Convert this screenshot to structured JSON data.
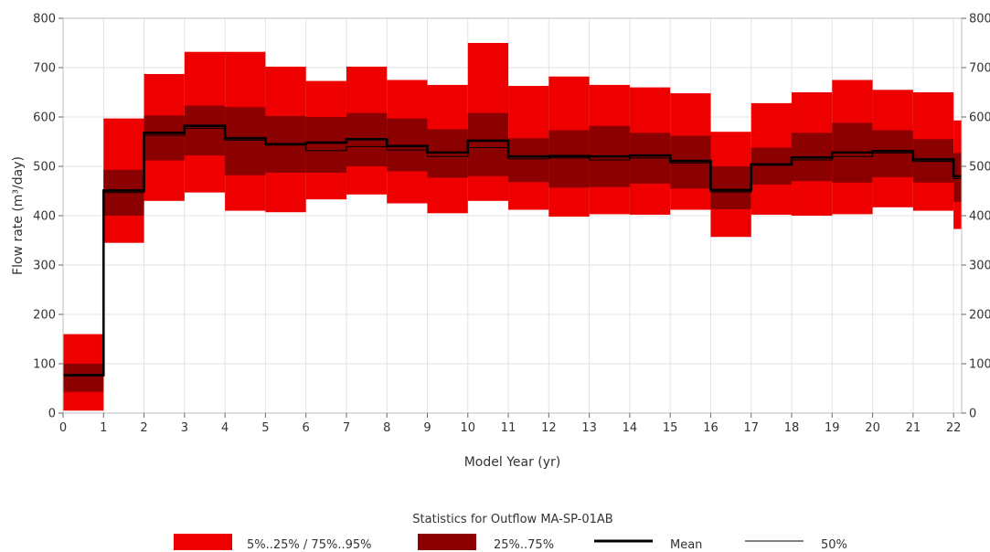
{
  "chart_data": {
    "type": "area",
    "title": "",
    "xlabel": "Model Year (yr)",
    "ylabel": "Flow rate (m³/day)",
    "xlim": [
      0,
      22.2
    ],
    "ylim": [
      0,
      800
    ],
    "x_ticks": [
      0,
      1,
      2,
      3,
      4,
      5,
      6,
      7,
      8,
      9,
      10,
      11,
      12,
      13,
      14,
      15,
      16,
      17,
      18,
      19,
      20,
      21,
      22
    ],
    "y_ticks": [
      0,
      100,
      200,
      300,
      400,
      500,
      600,
      700,
      800
    ],
    "grid": true,
    "right_axis": true,
    "legend": {
      "title": "Statistics for Outflow MA-SP-01AB",
      "placement": "bottom",
      "entries": [
        {
          "label": "5%..25% / 75%..95%",
          "kind": "band-outer"
        },
        {
          "label": "25%..75%",
          "kind": "band-inner"
        },
        {
          "label": "Mean",
          "kind": "line-thick"
        },
        {
          "label": "50%",
          "kind": "line-thin"
        }
      ]
    },
    "colors": {
      "outer_band": "#ee0000",
      "inner_band": "#8b0000",
      "mean_line": "#000000",
      "median_line": "#000000"
    },
    "steps": [
      {
        "x0": 0,
        "x1": 1,
        "p5": 5,
        "p25": 43,
        "p50": 75,
        "mean": 77,
        "p75": 100,
        "p95": 160
      },
      {
        "x0": 1,
        "x1": 2,
        "p5": 345,
        "p25": 400,
        "p50": 447,
        "mean": 451,
        "p75": 493,
        "p95": 597
      },
      {
        "x0": 2,
        "x1": 3,
        "p5": 430,
        "p25": 512,
        "p50": 563,
        "mean": 568,
        "p75": 603,
        "p95": 687
      },
      {
        "x0": 3,
        "x1": 4,
        "p5": 447,
        "p25": 522,
        "p50": 577,
        "mean": 582,
        "p75": 623,
        "p95": 732
      },
      {
        "x0": 4,
        "x1": 5,
        "p5": 410,
        "p25": 482,
        "p50": 553,
        "mean": 557,
        "p75": 620,
        "p95": 732
      },
      {
        "x0": 5,
        "x1": 6,
        "p5": 407,
        "p25": 487,
        "p50": 543,
        "mean": 545,
        "p75": 602,
        "p95": 702
      },
      {
        "x0": 6,
        "x1": 7,
        "p5": 433,
        "p25": 487,
        "p50": 532,
        "mean": 548,
        "p75": 600,
        "p95": 673
      },
      {
        "x0": 7,
        "x1": 8,
        "p5": 443,
        "p25": 500,
        "p50": 540,
        "mean": 555,
        "p75": 608,
        "p95": 702
      },
      {
        "x0": 8,
        "x1": 9,
        "p5": 425,
        "p25": 490,
        "p50": 533,
        "mean": 541,
        "p75": 597,
        "p95": 675
      },
      {
        "x0": 9,
        "x1": 10,
        "p5": 405,
        "p25": 477,
        "p50": 520,
        "mean": 528,
        "p75": 575,
        "p95": 665
      },
      {
        "x0": 10,
        "x1": 11,
        "p5": 430,
        "p25": 480,
        "p50": 538,
        "mean": 552,
        "p75": 608,
        "p95": 750
      },
      {
        "x0": 11,
        "x1": 12,
        "p5": 412,
        "p25": 468,
        "p50": 515,
        "mean": 520,
        "p75": 557,
        "p95": 663
      },
      {
        "x0": 12,
        "x1": 13,
        "p5": 398,
        "p25": 457,
        "p50": 517,
        "mean": 521,
        "p75": 573,
        "p95": 682
      },
      {
        "x0": 13,
        "x1": 14,
        "p5": 403,
        "p25": 458,
        "p50": 513,
        "mean": 520,
        "p75": 582,
        "p95": 665
      },
      {
        "x0": 14,
        "x1": 15,
        "p5": 402,
        "p25": 465,
        "p50": 517,
        "mean": 522,
        "p75": 568,
        "p95": 660
      },
      {
        "x0": 15,
        "x1": 16,
        "p5": 412,
        "p25": 455,
        "p50": 507,
        "mean": 511,
        "p75": 562,
        "p95": 648
      },
      {
        "x0": 16,
        "x1": 17,
        "p5": 357,
        "p25": 413,
        "p50": 448,
        "mean": 452,
        "p75": 500,
        "p95": 570
      },
      {
        "x0": 17,
        "x1": 18,
        "p5": 402,
        "p25": 463,
        "p50": 502,
        "mean": 504,
        "p75": 538,
        "p95": 628
      },
      {
        "x0": 18,
        "x1": 19,
        "p5": 400,
        "p25": 470,
        "p50": 513,
        "mean": 518,
        "p75": 568,
        "p95": 650
      },
      {
        "x0": 19,
        "x1": 20,
        "p5": 403,
        "p25": 467,
        "p50": 520,
        "mean": 528,
        "p75": 588,
        "p95": 675
      },
      {
        "x0": 20,
        "x1": 21,
        "p5": 417,
        "p25": 478,
        "p50": 527,
        "mean": 531,
        "p75": 573,
        "p95": 655
      },
      {
        "x0": 21,
        "x1": 22,
        "p5": 410,
        "p25": 467,
        "p50": 510,
        "mean": 514,
        "p75": 555,
        "p95": 650
      },
      {
        "x0": 22,
        "x1": 22.2,
        "p5": 373,
        "p25": 428,
        "p50": 475,
        "mean": 480,
        "p75": 527,
        "p95": 593
      }
    ]
  }
}
